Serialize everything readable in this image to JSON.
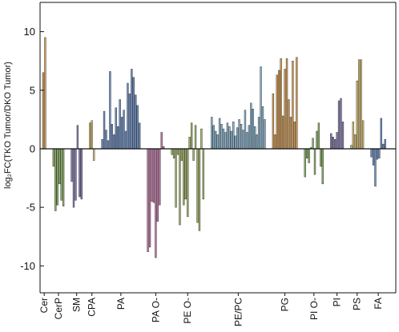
{
  "chart_data": {
    "type": "bar",
    "title": "",
    "xlabel": "",
    "ylabel": "log₂FC(TKO Tumor/DKO Tumor)",
    "ylim": [
      -12.3,
      12.5
    ],
    "yticks": [
      -10,
      -5,
      0,
      5,
      10
    ],
    "grid": false,
    "legend": "none",
    "colors": {
      "Cer": "#d9a15a",
      "CerP": "#8fb36a",
      "SM": "#8a7fb3",
      "CPA": "#d9c27a",
      "PA": "#6f8fc4",
      "PA O-": "#c27aa8",
      "PE O-": "#a3b56b",
      "PE/PC": "#8cb5cf",
      "PG": "#d9a15a",
      "PI O-": "#8fb36a",
      "PI": "#8a7fb3",
      "PS": "#d9c27a",
      "FA": "#6f8fc4"
    },
    "groups": [
      {
        "name": "Cer",
        "values": [
          6.5,
          9.5
        ]
      },
      {
        "name": "CerP",
        "values": [
          -1.5,
          -5.3,
          -4.8,
          -3,
          -4.4,
          -4.9
        ]
      },
      {
        "name": "SM",
        "values": [
          -2.8,
          -5,
          -4.4,
          2,
          -4.1,
          -4.3
        ]
      },
      {
        "name": "CPA",
        "values": [
          2.2,
          2.4,
          -1
        ]
      },
      {
        "name": "PA",
        "values": [
          0.8,
          3.2,
          1.6,
          0.7,
          6.6,
          2.1,
          1.2,
          3.5,
          1.9,
          4.2,
          2.7,
          3.3,
          1.5,
          5.6,
          4.7,
          6.8,
          6.1,
          4.6,
          3.7,
          2.2
        ]
      },
      {
        "name": "PA O-",
        "values": [
          -8.8,
          -8.4,
          -4.5,
          -4.6,
          -9.3,
          -6.2,
          -4.8,
          1.4,
          0.2
        ]
      },
      {
        "name": "PE O-",
        "values": [
          -0.5,
          -0.8,
          -5,
          -0.5,
          -6.5,
          -1,
          -4.8,
          -4.3,
          -5.8,
          1,
          2.2,
          -1,
          2,
          -6.3,
          -7,
          1.7,
          -4.3
        ]
      },
      {
        "name": "PE/PC",
        "values": [
          2.7,
          2,
          1.5,
          1.2,
          2.6,
          2.1,
          1.7,
          1.4,
          2.2,
          1.9,
          1.5,
          2.3,
          1.1,
          1.8,
          2.5,
          2.1,
          1.6,
          3.3,
          1.4,
          2,
          3.9,
          3.4,
          1.9,
          1.2,
          2.7,
          7,
          3.6,
          2.5
        ]
      },
      {
        "name": "PG",
        "values": [
          4.7,
          1.2,
          6.3,
          6.7,
          7.7,
          2.8,
          6.8,
          7.7,
          4.2,
          2.7,
          7.5,
          2.3,
          7.8
        ]
      },
      {
        "name": "PI O-",
        "values": [
          -2.4,
          -0.8,
          -1.2,
          0.1,
          0.9,
          -2.2,
          1.5,
          2.2,
          -1.5,
          -3
        ]
      },
      {
        "name": "PI",
        "values": [
          1.3,
          1,
          0.8,
          1.4,
          4.1,
          4.3,
          2.3
        ]
      },
      {
        "name": "PS",
        "values": [
          0.3,
          2.3,
          1.2,
          5.8,
          7.6,
          7.6,
          2.4
        ]
      },
      {
        "name": "FA",
        "values": [
          -0.7,
          -1.4,
          -3.2,
          -0.9,
          -0.8,
          2.6,
          0.4,
          0.8
        ]
      }
    ],
    "tick_labels": [
      "Cer",
      "CerP",
      "SM",
      "CPA",
      "PA",
      "PA O-",
      "PE O-",
      "PE/PC",
      "PG",
      "PI O-",
      "PI",
      "PS",
      "FA"
    ]
  }
}
